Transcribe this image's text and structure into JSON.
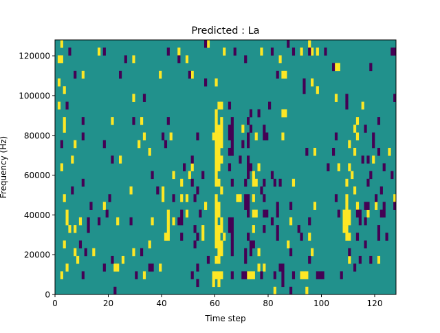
{
  "chart_data": {
    "type": "heatmap",
    "title": "Predicted : La",
    "xlabel": "Time step",
    "ylabel": "Frequency (Hz)",
    "xlim": [
      0,
      128
    ],
    "ylim": [
      0,
      128000
    ],
    "n_time_steps": 128,
    "n_frequency_bins": 33,
    "x_ticks": [
      0,
      20,
      40,
      60,
      80,
      100,
      120
    ],
    "y_ticks": [
      0,
      20000,
      40000,
      60000,
      80000,
      100000,
      120000
    ],
    "grid": false,
    "colormap": {
      "low": "#440154",
      "mid": "#21918c",
      "high": "#fde725"
    },
    "default_value": "mid",
    "cells_note": "rows are frequency bins indexed from the top (highest) bin; values are time-step columns",
    "high_cells": {
      "0": [
        2,
        57,
        95
      ],
      "1": [
        16,
        46,
        63,
        77,
        92,
        96,
        98
      ],
      "2": [
        1,
        2,
        29,
        49,
        84
      ],
      "3": [
        105,
        106
      ],
      "4": [
        10,
        39,
        51,
        85,
        86
      ],
      "5": [
        1,
        60,
        96
      ],
      "6": [
        3,
        98
      ],
      "7": [
        29,
        105
      ],
      "8": [
        1,
        61,
        62,
        115
      ],
      "9": [
        60,
        85,
        86
      ],
      "10": [
        3,
        21,
        32,
        60,
        62,
        113
      ],
      "11": [
        3,
        60,
        61,
        62,
        70,
        112
      ],
      "12": [
        33,
        43,
        59,
        60,
        61,
        62,
        75,
        85,
        113
      ],
      "13": [
        7,
        31,
        60,
        61,
        62,
        110
      ],
      "14": [
        35,
        60,
        61,
        97,
        112,
        125
      ],
      "15": [
        6,
        24,
        60,
        61,
        62,
        119
      ],
      "16": [
        2,
        51,
        60,
        61,
        76,
        106,
        110
      ],
      "17": [
        44,
        50,
        60,
        74,
        111
      ],
      "18": [
        47,
        60,
        61,
        74,
        75,
        89,
        109
      ],
      "19": [
        28,
        40,
        62,
        112
      ],
      "20": [
        3,
        40,
        47,
        49,
        60,
        68,
        69,
        74,
        109,
        127
      ],
      "21": [
        18,
        56,
        60,
        61,
        97,
        109,
        113,
        120
      ],
      "22": [
        4,
        42,
        49,
        60,
        61,
        74,
        75,
        108,
        109,
        110,
        117
      ],
      "23": [
        4,
        9,
        23,
        36,
        42,
        44,
        60,
        62,
        88,
        108,
        109,
        110
      ],
      "24": [
        5,
        7,
        42,
        55,
        60,
        61,
        62,
        74,
        108,
        109
      ],
      "25": [
        41,
        42,
        55,
        60,
        61,
        63,
        95,
        109,
        110
      ],
      "26": [
        3,
        35,
        60,
        61,
        62,
        87
      ],
      "27": [
        7,
        14,
        29,
        61,
        62,
        76,
        96
      ],
      "28": [
        8,
        25,
        60,
        61,
        110,
        121
      ],
      "29": [
        4,
        22,
        23,
        39,
        76,
        78
      ],
      "30": [
        2,
        33,
        59,
        60,
        61,
        62,
        72,
        73,
        74,
        92,
        93,
        94
      ],
      "31": [
        59,
        61
      ],
      "32": [
        82,
        94
      ]
    },
    "low_cells": {
      "0": [
        56,
        87
      ],
      "1": [
        5,
        18,
        42,
        67,
        81,
        89,
        95,
        101,
        126,
        127
      ],
      "2": [
        26,
        46,
        71
      ],
      "3": [
        104,
        118
      ],
      "4": [
        7,
        24,
        50,
        83
      ],
      "5": [
        56,
        93
      ],
      "6": [
        93
      ],
      "7": [
        33,
        109,
        127
      ],
      "8": [
        4,
        65,
        80,
        109
      ],
      "9": [
        73,
        76
      ],
      "10": [
        10,
        29,
        42,
        66,
        72,
        121
      ],
      "11": [
        65,
        66,
        73,
        78,
        116
      ],
      "12": [
        10,
        40,
        53,
        65,
        66,
        72,
        78,
        79,
        105,
        119
      ],
      "13": [
        2,
        18,
        41,
        66,
        70,
        72,
        119
      ],
      "14": [
        65,
        66,
        94,
        104,
        121
      ],
      "15": [
        21,
        51,
        69,
        72,
        115,
        117
      ],
      "16": [
        48,
        65,
        72,
        73,
        102,
        123
      ],
      "17": [
        36,
        55,
        72,
        81,
        118,
        126
      ],
      "18": [
        10,
        51,
        66,
        71,
        78,
        82,
        84,
        117
      ],
      "19": [
        6,
        38,
        53,
        77,
        122
      ],
      "20": [
        20,
        44,
        52,
        71,
        72,
        78,
        105,
        120
      ],
      "21": [
        13,
        71,
        72,
        83,
        88,
        116,
        117,
        123,
        127
      ],
      "22": [
        19,
        47,
        54,
        72,
        78,
        79,
        83,
        106,
        113,
        114,
        122,
        123
      ],
      "23": [
        12,
        16,
        28,
        46,
        47,
        65,
        66,
        81,
        95,
        114,
        116
      ],
      "24": [
        12,
        52,
        65,
        66,
        78,
        83,
        91,
        121
      ],
      "25": [
        47,
        53,
        66,
        72,
        83,
        92,
        113,
        121,
        124
      ],
      "26": [
        9,
        52,
        66,
        73,
        74,
        116
      ],
      "27": [
        11,
        32,
        66,
        71,
        73,
        88,
        110
      ],
      "28": [
        21,
        57,
        71,
        95,
        114,
        118
      ],
      "29": [
        18,
        35,
        36,
        53,
        84,
        85,
        112
      ],
      "30": [
        10,
        30,
        51,
        66,
        70,
        71,
        77,
        82,
        85,
        89,
        98,
        99,
        100,
        107
      ],
      "31": [
        53,
        85
      ],
      "32": [
        22,
        88
      ]
    }
  }
}
